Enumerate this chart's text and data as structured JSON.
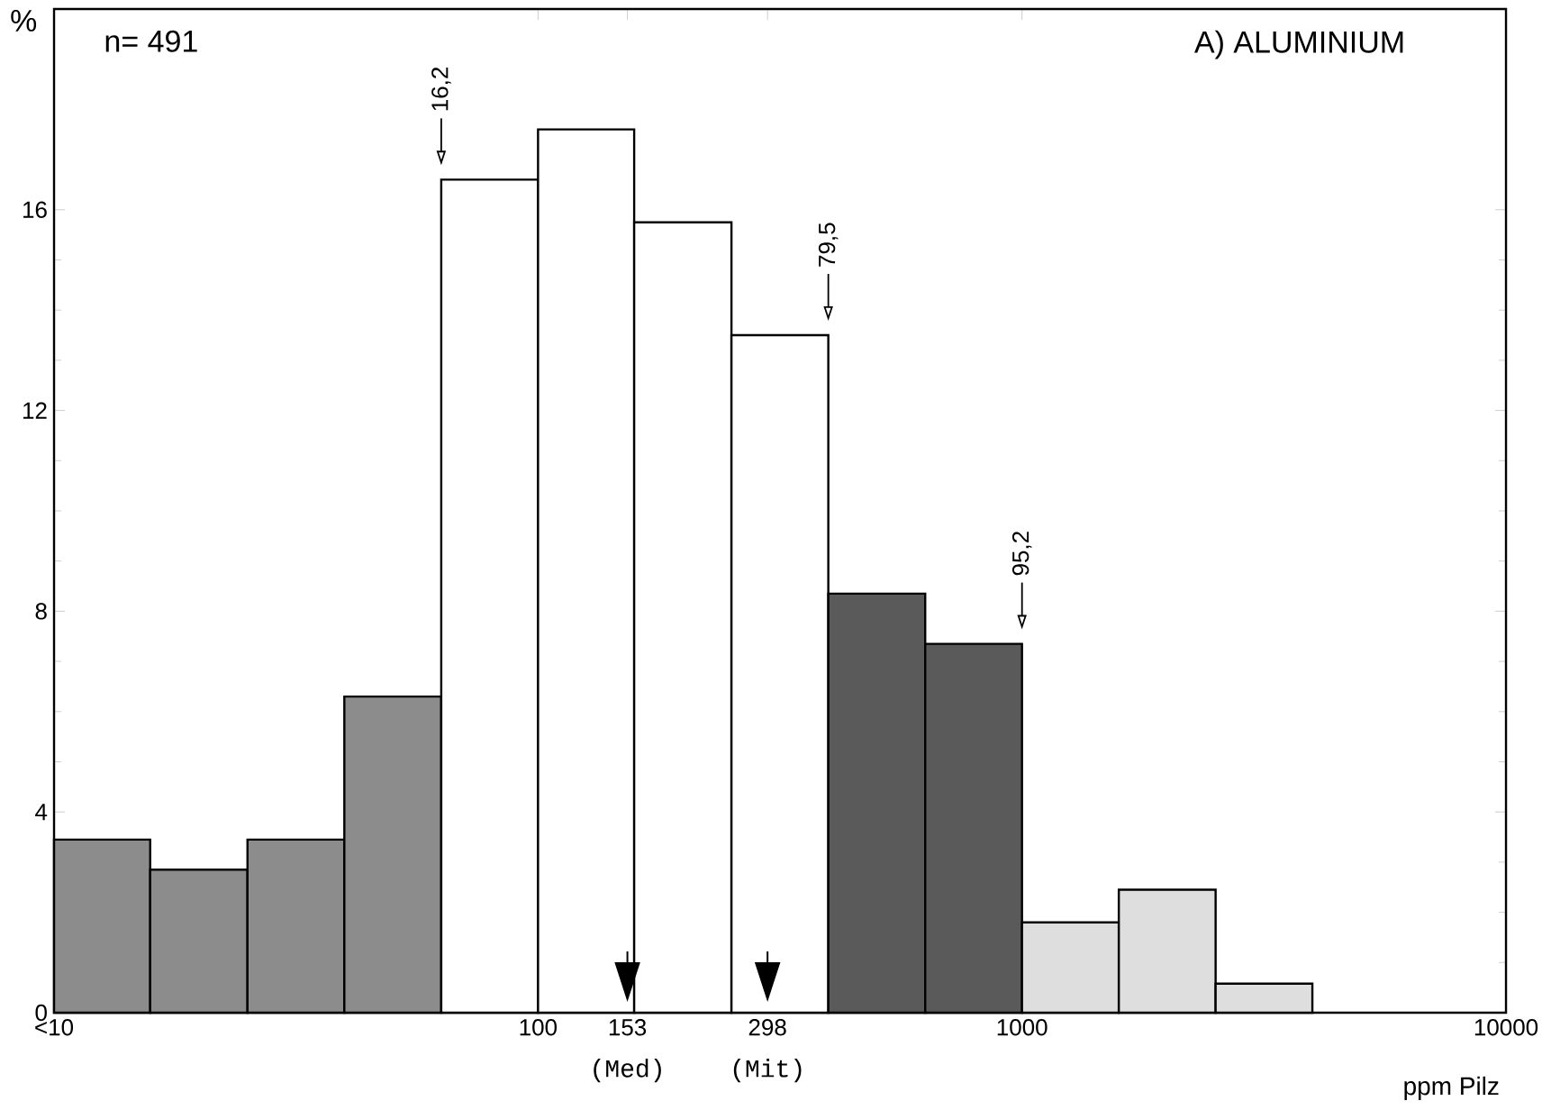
{
  "chart_data": {
    "type": "histogram",
    "title": "A) ALUMINIUM",
    "xlabel": "ppm Pilz",
    "ylabel": "%",
    "bins": [
      10,
      15.8,
      25.1,
      39.8,
      63.1,
      100,
      158,
      251,
      398,
      631,
      1000,
      1585,
      2512,
      3981
    ],
    "series": [
      {
        "color": "#8c8c8c",
        "values": [
          3.45,
          2.85,
          3.45,
          6.3,
          null,
          null,
          null,
          null,
          null,
          null,
          null,
          null,
          null
        ]
      },
      {
        "color": "#ffffff",
        "values": [
          null,
          null,
          null,
          null,
          16.6,
          17.6,
          15.75,
          13.5,
          null,
          null,
          null,
          null,
          null
        ]
      },
      {
        "color": "#5a5a5a",
        "values": [
          null,
          null,
          null,
          null,
          null,
          null,
          null,
          null,
          8.35,
          7.35,
          null,
          null,
          null
        ]
      },
      {
        "color": "#dedede",
        "values": [
          null,
          null,
          null,
          null,
          null,
          null,
          null,
          null,
          null,
          null,
          1.8,
          2.45,
          0.58
        ]
      }
    ],
    "log": "x",
    "xlim": [
      10,
      10000
    ],
    "ylim": [
      0,
      20
    ],
    "xticks": [
      {
        "value": 10,
        "label": "<10"
      },
      100,
      153,
      298,
      1000,
      10000
    ],
    "yticks": [
      0,
      4,
      8,
      12,
      16
    ],
    "annotations": [
      "n= 491",
      {
        "text": "16,2",
        "x": 63.1,
        "y": 16.6
      },
      {
        "text": "79,5",
        "x": 398,
        "y": 13.5
      },
      {
        "text": "95,2",
        "x": 1000,
        "y": 7.35
      },
      {
        "text": "(Med)",
        "x": 153,
        "y": 0
      },
      {
        "text": "(Mit)",
        "x": 298,
        "y": 0
      }
    ]
  }
}
